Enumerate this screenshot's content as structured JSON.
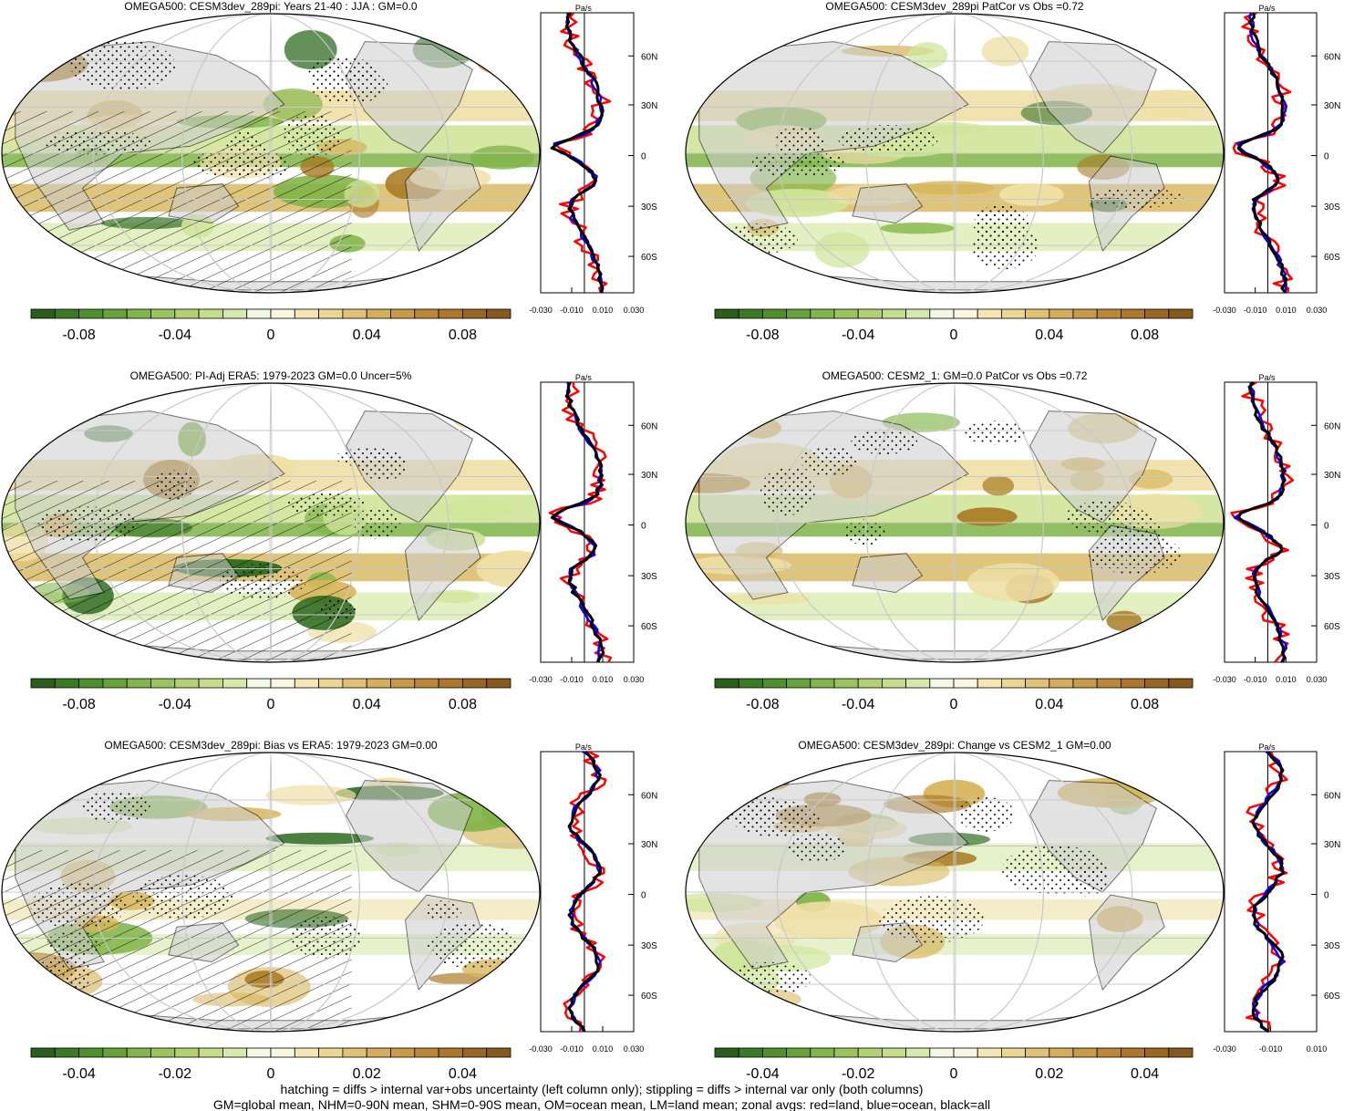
{
  "panels": [
    {
      "title": "OMEGA500: CESM3dev_289pi: Years 21-40 : JJA : GM=0.0",
      "colorbar_ticks": [
        "-0.08",
        "-0.04",
        "0",
        "0.04",
        "0.08"
      ],
      "zonal_x_ticks": [
        "-0.030",
        "-0.010",
        "0.010",
        "0.030"
      ]
    },
    {
      "title": "OMEGA500: CESM3dev_289pi PatCor vs Obs =0.72",
      "colorbar_ticks": [
        "-0.08",
        "-0.04",
        "0",
        "0.04",
        "0.08"
      ],
      "zonal_x_ticks": [
        "-0.030",
        "-0.010",
        "0.010",
        "0.030"
      ]
    },
    {
      "title": "OMEGA500: PI-Adj ERA5: 1979-2023 GM=0.0 Uncer=5%",
      "colorbar_ticks": [
        "-0.08",
        "-0.04",
        "0",
        "0.04",
        "0.08"
      ],
      "zonal_x_ticks": [
        "-0.030",
        "-0.010",
        "0.010",
        "0.030"
      ]
    },
    {
      "title": "OMEGA500: CESM2_1: GM=0.0 PatCor vs Obs =0.72",
      "colorbar_ticks": [
        "-0.08",
        "-0.04",
        "0",
        "0.04",
        "0.08"
      ],
      "zonal_x_ticks": [
        "-0.030",
        "-0.010",
        "0.010",
        "0.030"
      ]
    },
    {
      "title": "OMEGA500: CESM3dev_289pi: Bias vs ERA5: 1979-2023 GM=0.00",
      "colorbar_ticks": [
        "-0.04",
        "-0.02",
        "0",
        "0.02",
        "0.04"
      ],
      "zonal_x_ticks": [
        "-0.030",
        "-0.010",
        "0.010",
        "0.030"
      ]
    },
    {
      "title": "OMEGA500: CESM3dev_289pi: Change vs CESM2_1 GM=0.00",
      "colorbar_ticks": [
        "-0.04",
        "-0.02",
        "0",
        "0.02",
        "0.04"
      ],
      "zonal_x_ticks": [
        "-0.030",
        "-0.010",
        "0.010"
      ]
    }
  ],
  "zonal_unit": "Pa/s",
  "lat_labels": [
    "60N",
    "30N",
    "0",
    "30S",
    "60S"
  ],
  "footer": [
    "hatching = diffs > internal var+obs uncertainty (left column only); stippling = diffs > internal var only (both columns)",
    "GM=global mean, NHM=0-90N mean, SHM=0-90S mean, OM=ocean mean, LM=land mean; zonal avgs: red=land, blue=ocean, black=all"
  ],
  "colors": {
    "land": "#cccccc",
    "neg_dark": "#2d6a1f",
    "neg_mid": "#7fb446",
    "neg_light": "#cfe69a",
    "pos_light": "#efe0a6",
    "pos_mid": "#d7b55a",
    "pos_dark": "#a87a22",
    "zonal_land": "#ff0000",
    "zonal_ocean": "#0000ff",
    "zonal_all": "#000000"
  },
  "chart_data": [
    {
      "type": "heatmap",
      "title": "OMEGA500: CESM3dev_289pi: Years 21-40 : JJA : GM=0.0",
      "colorbar_range": [
        -0.1,
        0.1
      ],
      "zonal_xlim": [
        -0.03,
        0.03
      ]
    },
    {
      "type": "heatmap",
      "title": "OMEGA500: CESM3dev_289pi PatCor vs Obs =0.72",
      "colorbar_range": [
        -0.1,
        0.1
      ],
      "zonal_xlim": [
        -0.03,
        0.03
      ]
    },
    {
      "type": "heatmap",
      "title": "OMEGA500: PI-Adj ERA5: 1979-2023 GM=0.0 Uncer=5%",
      "colorbar_range": [
        -0.1,
        0.1
      ],
      "zonal_xlim": [
        -0.03,
        0.03
      ]
    },
    {
      "type": "heatmap",
      "title": "OMEGA500: CESM2_1: GM=0.0 PatCor vs Obs =0.72",
      "colorbar_range": [
        -0.1,
        0.1
      ],
      "zonal_xlim": [
        -0.03,
        0.03
      ]
    },
    {
      "type": "heatmap",
      "title": "OMEGA500: CESM3dev_289pi: Bias vs ERA5: 1979-2023 GM=0.00",
      "colorbar_range": [
        -0.05,
        0.05
      ],
      "zonal_xlim": [
        -0.03,
        0.03
      ]
    },
    {
      "type": "heatmap",
      "title": "OMEGA500: CESM3dev_289pi: Change vs CESM2_1 GM=0.00",
      "colorbar_range": [
        -0.05,
        0.05
      ],
      "zonal_xlim": [
        -0.03,
        0.01
      ]
    }
  ]
}
